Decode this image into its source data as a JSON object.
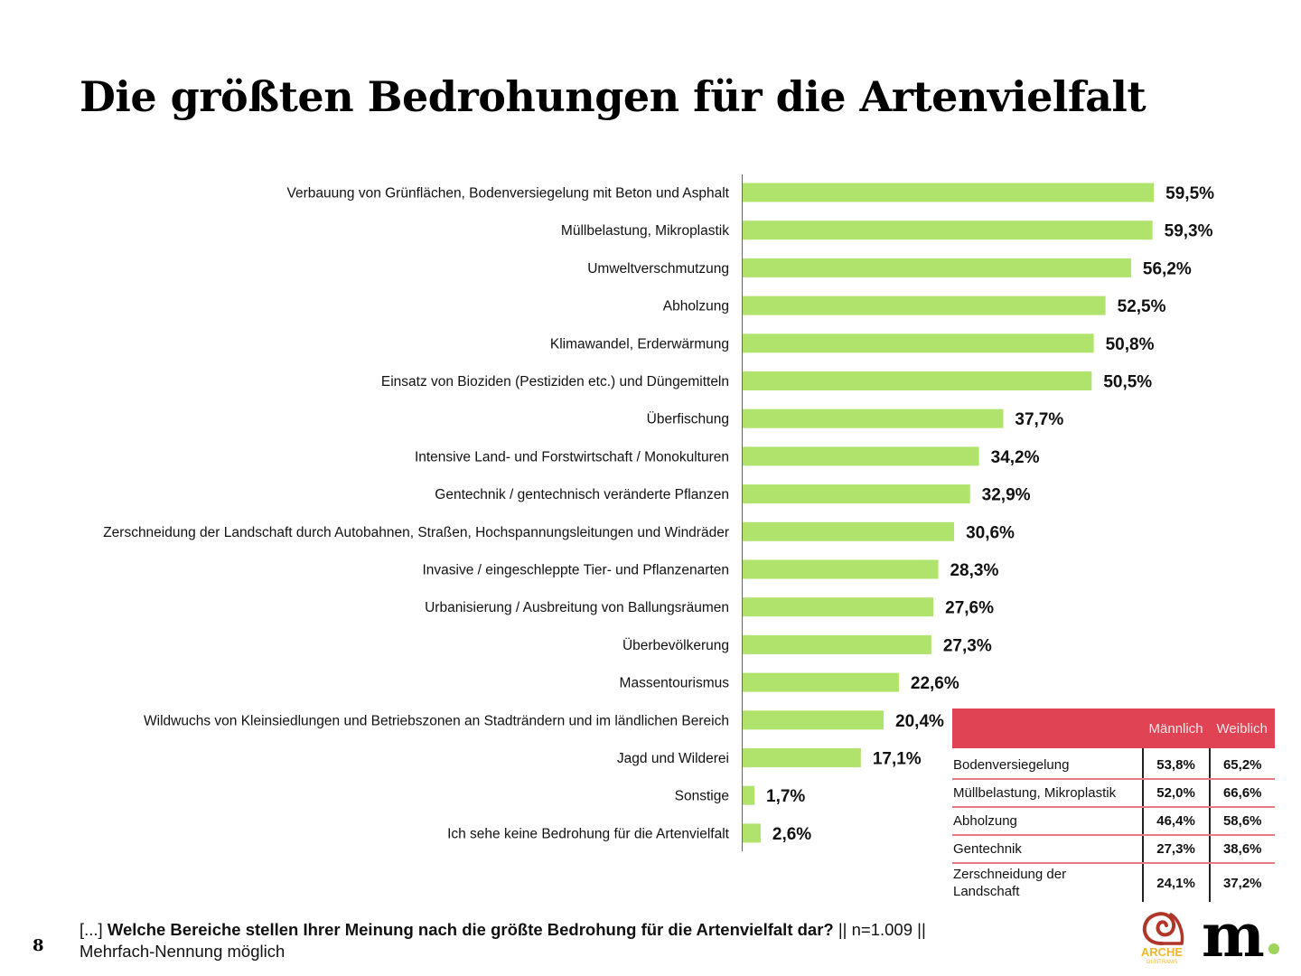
{
  "page": {
    "title": "Die größten Bedrohungen für die Artenvielfalt",
    "page_number": "8",
    "footnote": {
      "prefix": "[...] ",
      "question": "Welche Bereiche stellen Ihrer Meinung nach die größte Bedrohung für die Artenvielfalt dar?",
      "suffix": " || n=1.009 ||",
      "line2": "Mehrfach-Nennung möglich"
    },
    "logos": {
      "arche_text": "ARCHE",
      "arche_subtext": "GUNTRAMS",
      "m_text": "m"
    },
    "colors": {
      "bar": "#b0e36b",
      "table_header": "#e04353",
      "table_rule": "#e57a84",
      "arche_red": "#b0362a",
      "arche_yellow": "#f2b632",
      "m_dot": "#9ed45a"
    }
  },
  "chart_data": {
    "type": "bar",
    "orientation": "horizontal",
    "title": "Die größten Bedrohungen für die Artenvielfalt",
    "xlabel": "",
    "ylabel": "",
    "unit": "%",
    "xlim": [
      0,
      65
    ],
    "grid": false,
    "categories": [
      "Verbauung von Grünflächen, Bodenversiegelung mit Beton und Asphalt",
      "Müllbelastung, Mikroplastik",
      "Umweltverschmutzung",
      "Abholzung",
      "Klimawandel, Erderwärmung",
      "Einsatz von Bioziden (Pestiziden etc.) und Düngemitteln",
      "Überfischung",
      "Intensive Land- und Forstwirtschaft / Monokulturen",
      "Gentechnik / gentechnisch veränderte Pflanzen",
      "Zerschneidung der Landschaft durch Autobahnen, Straßen, Hochspannungsleitungen und Windräder",
      "Invasive / eingeschleppte Tier- und Pflanzenarten",
      "Urbanisierung / Ausbreitung von Ballungsräumen",
      "Überbevölkerung",
      "Massentourismus",
      "Wildwuchs von Kleinsiedlungen und Betriebszonen an Stadträndern und im ländlichen Bereich",
      "Jagd und Wilderei",
      "Sonstige",
      "Ich sehe keine Bedrohung für die Artenvielfalt"
    ],
    "values": [
      59.5,
      59.3,
      56.2,
      52.5,
      50.8,
      50.5,
      37.7,
      34.2,
      32.9,
      30.6,
      28.3,
      27.6,
      27.3,
      22.6,
      20.4,
      17.1,
      1.7,
      2.6
    ],
    "value_labels": [
      "59,5%",
      "59,3%",
      "56,2%",
      "52,5%",
      "50,8%",
      "50,5%",
      "37,7%",
      "34,2%",
      "32,9%",
      "30,6%",
      "28,3%",
      "27,6%",
      "27,3%",
      "22,6%",
      "20,4%",
      "17,1%",
      "1,7%",
      "2,6%"
    ]
  },
  "gender_table": {
    "headers": [
      "",
      "Männlich",
      "Weiblich"
    ],
    "rows": [
      {
        "name": "Bodenversiegelung",
        "male": "53,8%",
        "female": "65,2%"
      },
      {
        "name": "Müllbelastung, Mikroplastik",
        "male": "52,0%",
        "female": "66,6%"
      },
      {
        "name": "Abholzung",
        "male": "46,4%",
        "female": "58,6%"
      },
      {
        "name": "Gentechnik",
        "male": "27,3%",
        "female": "38,6%"
      },
      {
        "name": "Zerschneidung der Landschaft",
        "male": "24,1%",
        "female": "37,2%"
      }
    ]
  }
}
